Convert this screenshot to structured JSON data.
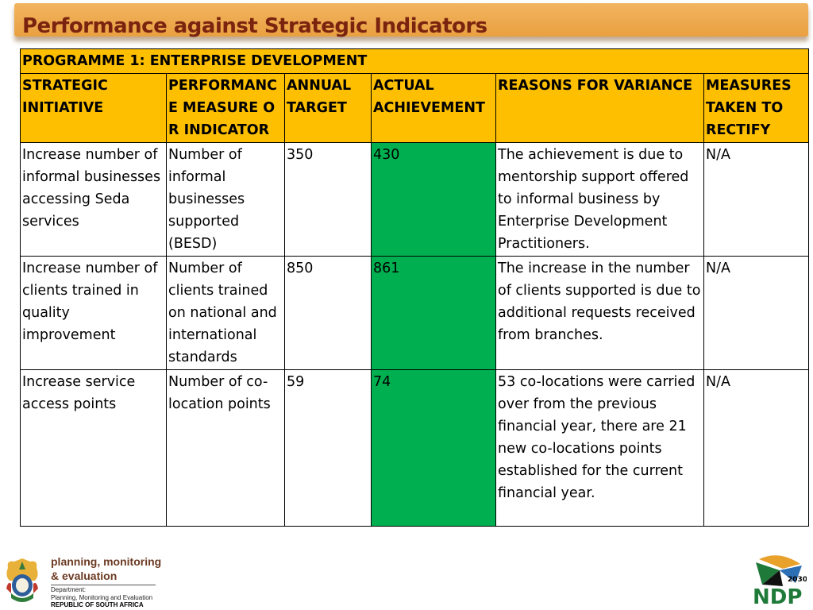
{
  "page_title": "Performance against Strategic Indicators",
  "programme": "PROGRAMME 1: ENTERPRISE DEVELOPMENT",
  "columns": [
    "STRATEGIC INITIATIVE",
    "PERFORMANCE MEASURE OR INDICATOR",
    "ANNUAL TARGET",
    "ACTUAL ACHIEVEMENT",
    "REASONS FOR VARIANCE",
    "MEASURES TAKEN TO RECTIFY"
  ],
  "rows": [
    {
      "initiative": "Increase number of informal businesses accessing Seda services",
      "indicator": "Number of informal businesses supported (BESD)",
      "target": "350",
      "actual": "430",
      "reason": "The achievement is due to mentorship support offered to informal business by Enterprise Development Practitioners.",
      "measures": "N/A"
    },
    {
      "initiative": "Increase number of clients trained in quality improvement",
      "indicator": "Number of clients trained on national and international standards",
      "target": "850",
      "actual": "861",
      "reason": "The increase in the number of clients supported is due to additional requests received from branches.",
      "measures": "N/A"
    },
    {
      "initiative": "Increase service access points",
      "indicator": "Number of co-location points",
      "target": "59",
      "actual": "74",
      "reason": "53 co-locations were carried over from the previous financial year, there are 21 new co-locations points established for the current financial year.",
      "measures": "N/A"
    }
  ],
  "footer": {
    "logo_line1": "planning, monitoring",
    "logo_line2": "& evaluation",
    "dept_line1": "Department:",
    "dept_line2": "Planning, Monitoring and Evaluation",
    "dept_line3": "REPUBLIC OF SOUTH AFRICA",
    "ndp_year": "2030",
    "ndp_text": "NDP"
  },
  "colors": {
    "header_fill": "#fdbf00",
    "achievement_fill": "#00b050",
    "title_color": "#7a2410",
    "title_bar": "#e9a040"
  },
  "icons": [
    "coat-of-arms-icon",
    "ndp-logo-icon"
  ]
}
